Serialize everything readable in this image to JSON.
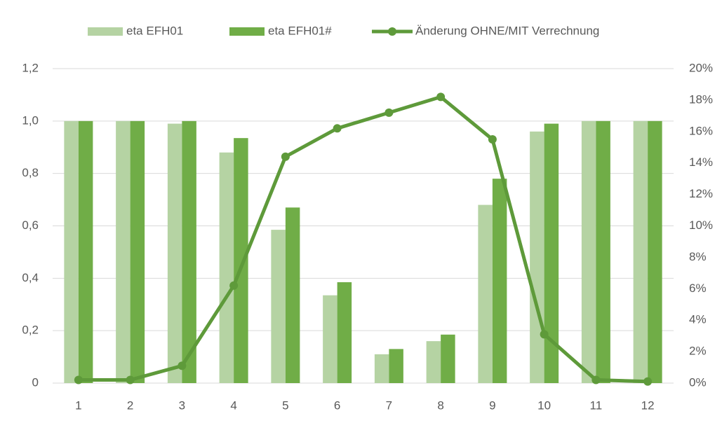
{
  "chart_data": {
    "type": "bar",
    "categories": [
      "1",
      "2",
      "3",
      "4",
      "5",
      "6",
      "7",
      "8",
      "9",
      "10",
      "11",
      "12"
    ],
    "series": [
      {
        "name": "eta EFH01",
        "type": "bar",
        "color": "#b5d3a3",
        "values": [
          1.0,
          1.0,
          0.99,
          0.88,
          0.585,
          0.335,
          0.11,
          0.16,
          0.68,
          0.96,
          1.0,
          1.0
        ]
      },
      {
        "name": "eta EFH01#",
        "type": "bar",
        "color": "#70ad47",
        "values": [
          1.0,
          1.0,
          1.0,
          0.935,
          0.67,
          0.385,
          0.13,
          0.185,
          0.78,
          0.99,
          1.0,
          1.0
        ]
      },
      {
        "name": "Änderung OHNE/MIT Verrechnung",
        "type": "line",
        "axis": "y2",
        "color": "#5e9a3a",
        "values": [
          0.2,
          0.2,
          1.1,
          6.2,
          14.4,
          16.2,
          17.2,
          18.2,
          15.5,
          3.1,
          0.2,
          0.1
        ]
      }
    ],
    "ylim": [
      0,
      1.2
    ],
    "yticks": [
      0,
      {
        "value": 0.2,
        "label": "0,2"
      },
      {
        "value": 0.4,
        "label": "0,4"
      },
      {
        "value": 0.6,
        "label": "0,6"
      },
      {
        "value": 0.8,
        "label": "0,8"
      },
      {
        "value": 1.0,
        "label": "1,0"
      },
      {
        "value": 1.2,
        "label": "1,2"
      }
    ],
    "y2lim": [
      0,
      20
    ],
    "y2ticks": [
      {
        "value": 0,
        "label": "0%"
      },
      {
        "value": 2,
        "label": "2%"
      },
      {
        "value": 4,
        "label": "4%"
      },
      {
        "value": 6,
        "label": "6%"
      },
      {
        "value": 8,
        "label": "8%"
      },
      {
        "value": 10,
        "label": "10%"
      },
      {
        "value": 12,
        "label": "12%"
      },
      {
        "value": 14,
        "label": "14%"
      },
      {
        "value": 16,
        "label": "16%"
      },
      {
        "value": 18,
        "label": "18%"
      },
      {
        "value": 20,
        "label": "20%"
      }
    ],
    "grid": true,
    "legend": "top"
  }
}
